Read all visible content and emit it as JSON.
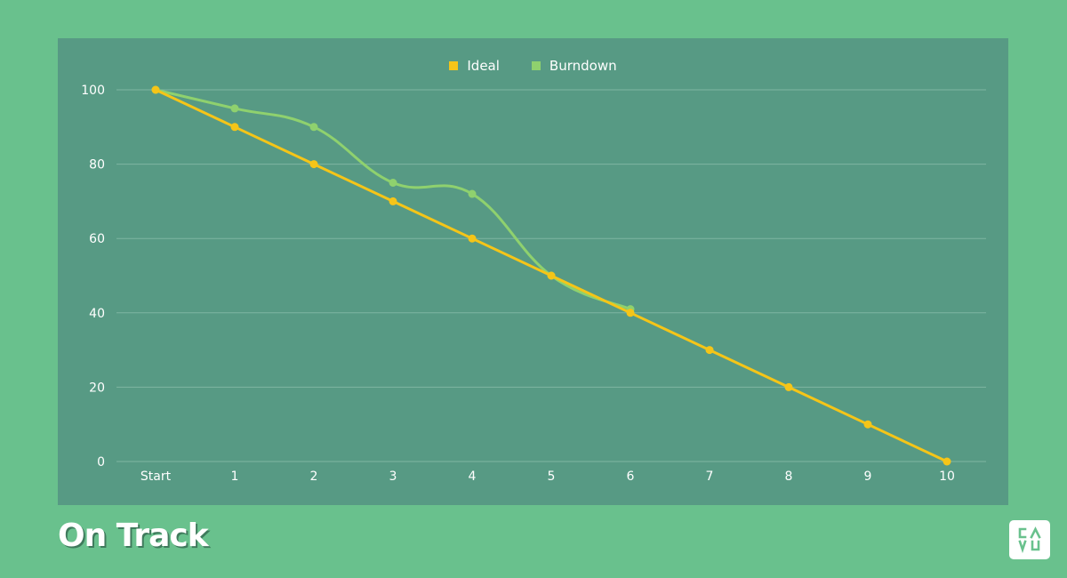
{
  "title": "On Track",
  "logo": {
    "text_top": "CA",
    "text_bottom": "VU",
    "name": "CAVU"
  },
  "colors": {
    "background": "#69c18d",
    "chart_background": "#579a84",
    "ideal": "#f5c518",
    "burndown": "#8fd16e",
    "grid": "#7fb5a2",
    "text": "#ffffff"
  },
  "legend": [
    {
      "label": "Ideal",
      "color": "#f5c518"
    },
    {
      "label": "Burndown",
      "color": "#8fd16e"
    }
  ],
  "chart_data": {
    "type": "line",
    "title": "On Track",
    "xlabel": "",
    "ylabel": "",
    "categories": [
      "Start",
      "1",
      "2",
      "3",
      "4",
      "5",
      "6",
      "7",
      "8",
      "9",
      "10"
    ],
    "ylim": [
      0,
      100
    ],
    "yticks": [
      0,
      20,
      40,
      60,
      80,
      100
    ],
    "grid": true,
    "legend_position": "top",
    "series": [
      {
        "name": "Ideal",
        "values": [
          100,
          90,
          80,
          70,
          60,
          50,
          40,
          30,
          20,
          10,
          0
        ],
        "smooth": false
      },
      {
        "name": "Burndown",
        "values": [
          100,
          95,
          90,
          75,
          72,
          50,
          41,
          null,
          null,
          null,
          null
        ],
        "smooth": true
      }
    ]
  }
}
